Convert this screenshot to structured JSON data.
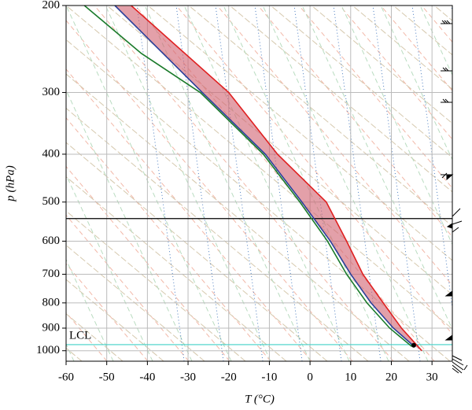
{
  "chart_data": {
    "type": "skewt",
    "xlabel": "T (°C)",
    "ylabel": "p (hPa)",
    "xlim": [
      -60,
      35
    ],
    "ylim": [
      1050,
      200
    ],
    "ylog": true,
    "grid": true,
    "xticks": [
      -60,
      -50,
      -40,
      -30,
      -20,
      -10,
      0,
      10,
      20,
      30
    ],
    "yticks": [
      200,
      300,
      400,
      500,
      600,
      700,
      800,
      900,
      1000
    ],
    "series": [
      {
        "color": "#e02020",
        "p": [
          1000,
          900,
          800,
          700,
          600,
          500,
          400,
          300,
          200
        ],
        "values": [
          27.5,
          22.5,
          18,
          13,
          9,
          4,
          -8,
          -20,
          -44
        ]
      },
      {
        "color": "#2a3f9a",
        "p": [
          970,
          900,
          800,
          700,
          600,
          500,
          400,
          300,
          200
        ],
        "values": [
          25,
          20.5,
          15,
          10,
          5,
          -2,
          -11,
          -26.5,
          -48
        ]
      },
      {
        "color": "#1a7a2a",
        "p": [
          980,
          900,
          800,
          700,
          600,
          500,
          400,
          300,
          250,
          200
        ],
        "values": [
          25,
          19.6,
          14,
          9,
          4.3,
          -2.5,
          -11.5,
          -27,
          -41.5,
          -55.5
        ]
      }
    ],
    "fill_color": "#d06070",
    "hlines": [
      {
        "p": 540,
        "color": "#000000"
      },
      {
        "p": 972,
        "color": "#40d0c8",
        "label": "LCL"
      }
    ],
    "point": {
      "p": 975,
      "value": 25.5,
      "color": "#000000"
    }
  }
}
